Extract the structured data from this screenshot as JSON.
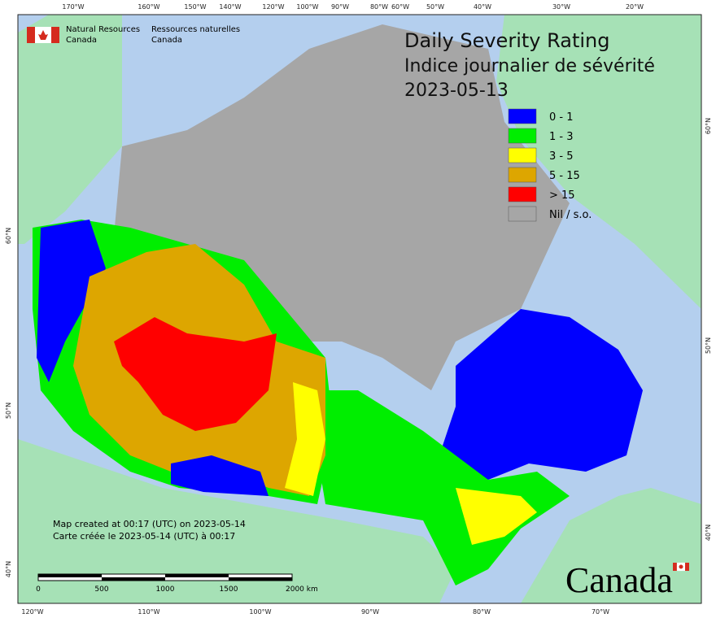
{
  "header": {
    "agency_en": "Natural Resources",
    "country_en": "Canada",
    "agency_fr": "Ressources naturelles",
    "country_fr": "Canada"
  },
  "title": {
    "line1": "Daily Severity Rating",
    "line2": "Indice journalier de sévérité",
    "date": "2023-05-13"
  },
  "legend": [
    {
      "label": "0 - 1",
      "color": "#0000ff"
    },
    {
      "label": "1 - 3",
      "color": "#00ee00"
    },
    {
      "label": "3 - 5",
      "color": "#ffff00"
    },
    {
      "label": "5 - 15",
      "color": "#dda600"
    },
    {
      "label": "> 15",
      "color": "#ff0000"
    },
    {
      "label": "Nil / s.o.",
      "color": "#a6a6a6"
    }
  ],
  "credits": {
    "created_en": "Map created at 00:17 (UTC) on 2023-05-14",
    "created_fr": "Carte créée le 2023-05-14 (UTC) à 00:17"
  },
  "scale_bar": [
    "0",
    "500",
    "1000",
    "1500",
    "2000 km"
  ],
  "graticule": {
    "top": [
      "170°W",
      "160°W",
      "150°W",
      "140°W",
      "120°W",
      "100°W",
      "90°W",
      "80°W",
      "60°W",
      "50°W",
      "40°W",
      "30°W",
      "20°W"
    ],
    "bottom": [
      "120°W",
      "110°W",
      "100°W",
      "90°W",
      "80°W",
      "70°W"
    ],
    "left": [
      "60°N",
      "50°N",
      "40°N"
    ],
    "right": [
      "60°N",
      "50°N",
      "40°N"
    ]
  },
  "wordmark": "Canada"
}
